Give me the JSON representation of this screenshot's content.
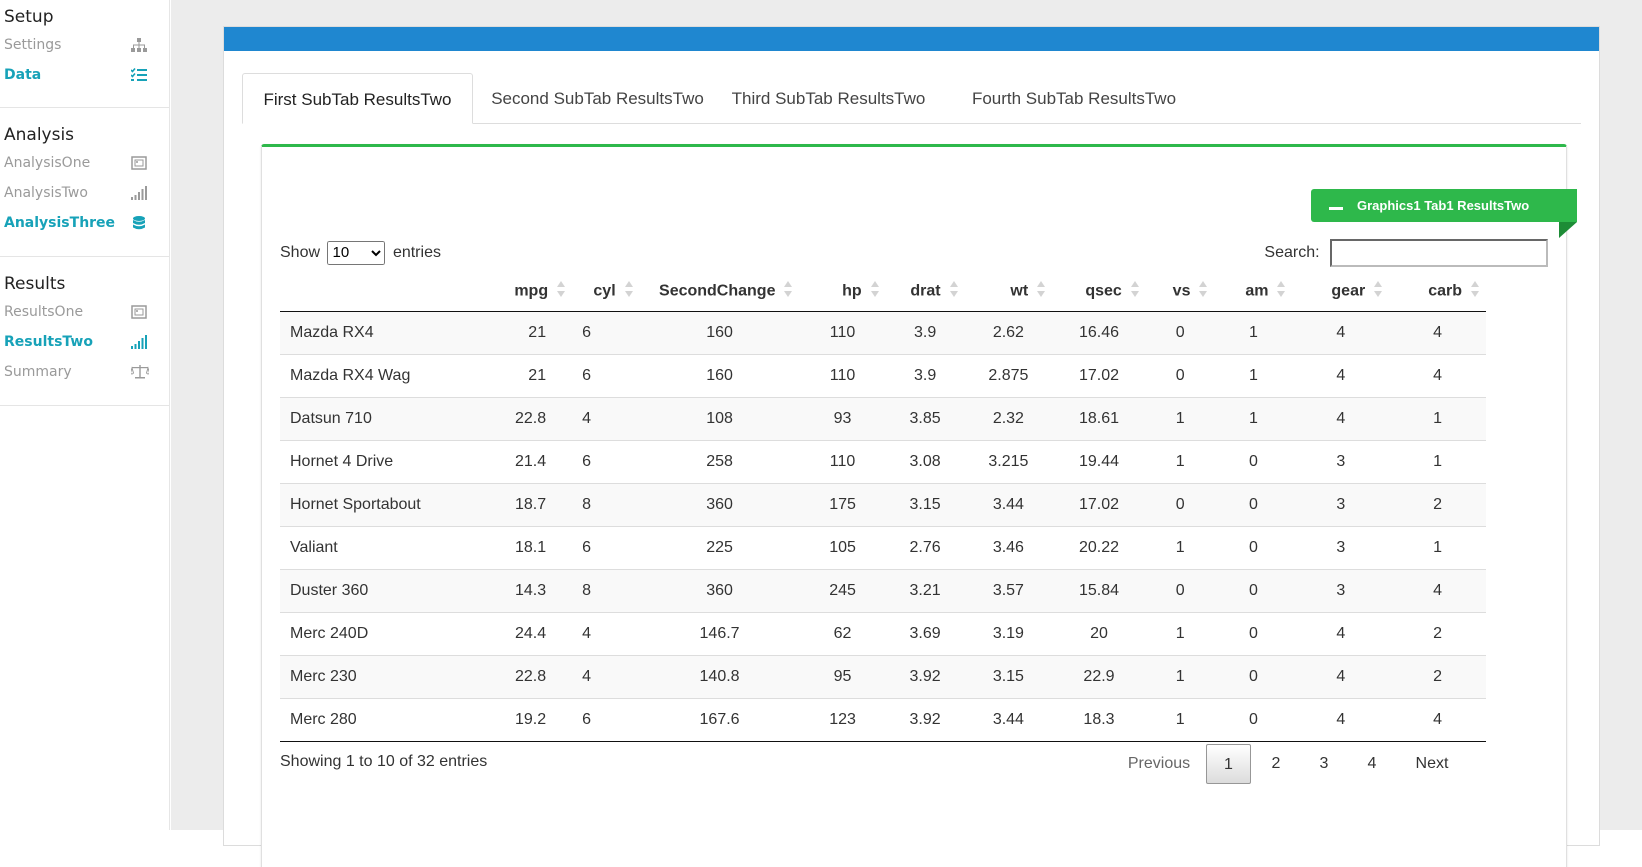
{
  "sidebar": {
    "sections": [
      {
        "title": "Setup",
        "items": [
          {
            "label": "Settings",
            "icon": "sitemap-icon",
            "active": false
          },
          {
            "label": "Data",
            "icon": "list-check-icon",
            "active": true
          }
        ]
      },
      {
        "title": "Analysis",
        "items": [
          {
            "label": "AnalysisOne",
            "icon": "image-frame-icon",
            "active": false
          },
          {
            "label": "AnalysisTwo",
            "icon": "signal-bars-icon",
            "active": false
          },
          {
            "label": "AnalysisThree",
            "icon": "database-icon",
            "active": true
          }
        ]
      },
      {
        "title": "Results",
        "items": [
          {
            "label": "ResultsOne",
            "icon": "image-frame-icon",
            "active": false
          },
          {
            "label": "ResultsTwo",
            "icon": "signal-bars-icon",
            "active": true
          },
          {
            "label": "Summary",
            "icon": "balance-scale-icon",
            "active": false
          }
        ]
      }
    ],
    "accent_color": "#17a2b8"
  },
  "box": {
    "header_color": "#1f87d0"
  },
  "tabs": [
    {
      "label": "First SubTab ResultsTwo",
      "active": true
    },
    {
      "label": "Second SubTab ResultsTwo",
      "active": false
    },
    {
      "label": "Third SubTab ResultsTwo",
      "active": false
    },
    {
      "label": "Fourth SubTab ResultsTwo",
      "active": false
    }
  ],
  "panel": {
    "ribbon_label": "Graphics1 Tab1 ResultsTwo",
    "ribbon_color": "#2eb84b"
  },
  "datatable": {
    "show_label": "Show",
    "entries_label": "entries",
    "length_value": "10",
    "search_label": "Search:",
    "search_value": "",
    "columns": [
      "",
      "mpg",
      "cyl",
      "SecondChange",
      "hp",
      "drat",
      "wt",
      "qsec",
      "vs",
      "am",
      "gear",
      "carb"
    ],
    "rows": [
      [
        "Mazda RX4",
        "21",
        "6",
        "160",
        "110",
        "3.9",
        "2.62",
        "16.46",
        "0",
        "1",
        "4",
        "4"
      ],
      [
        "Mazda RX4 Wag",
        "21",
        "6",
        "160",
        "110",
        "3.9",
        "2.875",
        "17.02",
        "0",
        "1",
        "4",
        "4"
      ],
      [
        "Datsun 710",
        "22.8",
        "4",
        "108",
        "93",
        "3.85",
        "2.32",
        "18.61",
        "1",
        "1",
        "4",
        "1"
      ],
      [
        "Hornet 4 Drive",
        "21.4",
        "6",
        "258",
        "110",
        "3.08",
        "3.215",
        "19.44",
        "1",
        "0",
        "3",
        "1"
      ],
      [
        "Hornet Sportabout",
        "18.7",
        "8",
        "360",
        "175",
        "3.15",
        "3.44",
        "17.02",
        "0",
        "0",
        "3",
        "2"
      ],
      [
        "Valiant",
        "18.1",
        "6",
        "225",
        "105",
        "2.76",
        "3.46",
        "20.22",
        "1",
        "0",
        "3",
        "1"
      ],
      [
        "Duster 360",
        "14.3",
        "8",
        "360",
        "245",
        "3.21",
        "3.57",
        "15.84",
        "0",
        "0",
        "3",
        "4"
      ],
      [
        "Merc 240D",
        "24.4",
        "4",
        "146.7",
        "62",
        "3.69",
        "3.19",
        "20",
        "1",
        "0",
        "4",
        "2"
      ],
      [
        "Merc 230",
        "22.8",
        "4",
        "140.8",
        "95",
        "3.92",
        "3.15",
        "22.9",
        "1",
        "0",
        "4",
        "2"
      ],
      [
        "Merc 280",
        "19.2",
        "6",
        "167.6",
        "123",
        "3.92",
        "3.44",
        "18.3",
        "1",
        "0",
        "4",
        "4"
      ]
    ],
    "info": "Showing 1 to 10 of 32 entries",
    "pagination": {
      "previous": "Previous",
      "pages": [
        "1",
        "2",
        "3",
        "4"
      ],
      "current": "1",
      "next": "Next"
    }
  }
}
